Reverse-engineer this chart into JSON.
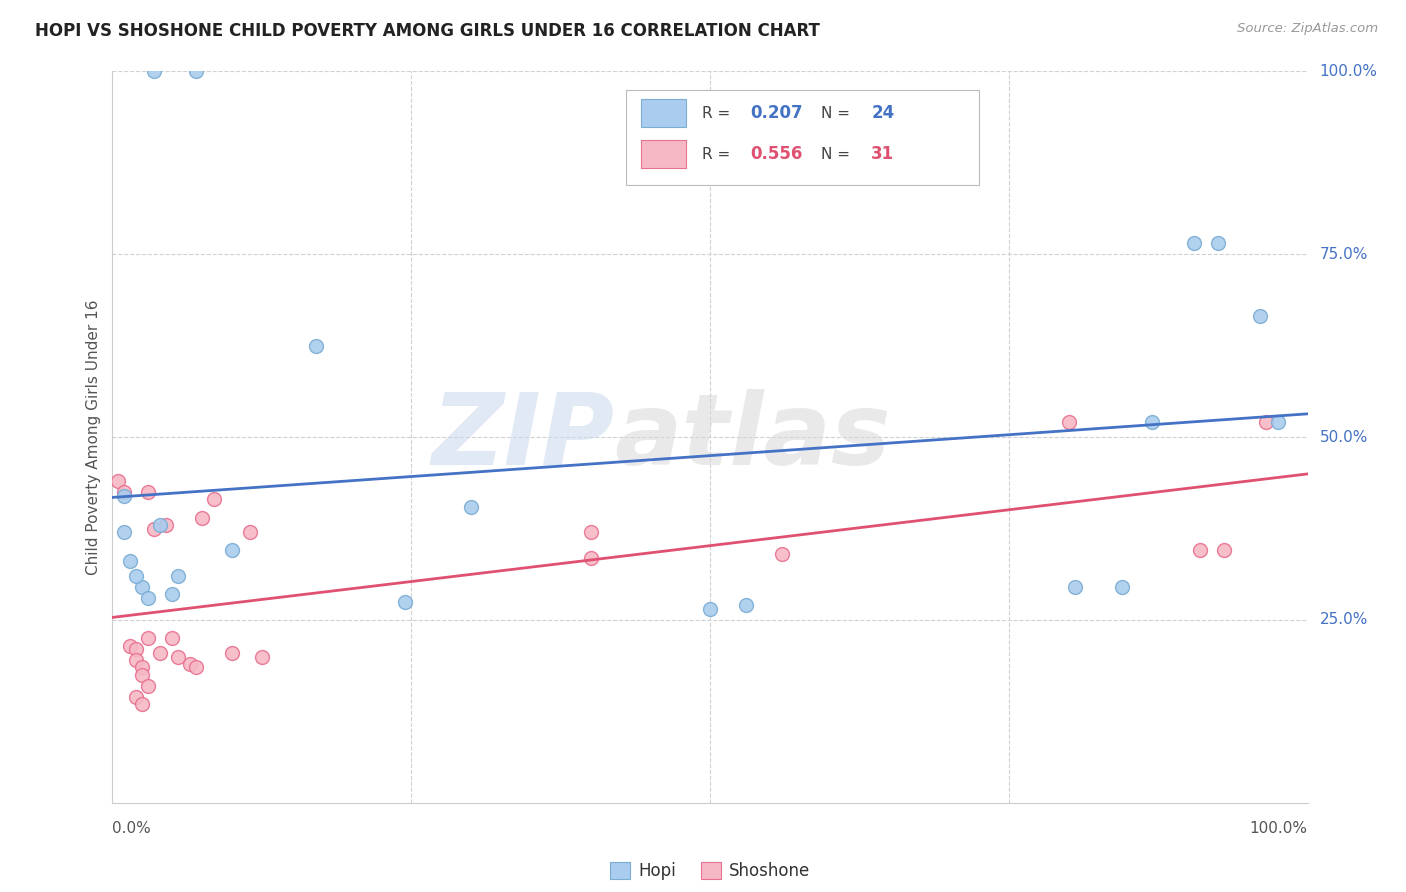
{
  "title": "HOPI VS SHOSHONE CHILD POVERTY AMONG GIRLS UNDER 16 CORRELATION CHART",
  "source": "Source: ZipAtlas.com",
  "ylabel": "Child Poverty Among Girls Under 16",
  "watermark_zip": "ZIP",
  "watermark_atlas": "atlas",
  "hopi": {
    "R": 0.207,
    "N": 24,
    "dot_color": "#aaccee",
    "edge_color": "#7aadd4",
    "line_color": "#4472c4",
    "label": "Hopi",
    "points": [
      [
        0.01,
        0.42
      ],
      [
        0.035,
        1.0
      ],
      [
        0.07,
        1.0
      ],
      [
        0.01,
        0.37
      ],
      [
        0.015,
        0.33
      ],
      [
        0.025,
        0.295
      ],
      [
        0.05,
        0.285
      ],
      [
        0.03,
        0.28
      ],
      [
        0.055,
        0.31
      ],
      [
        0.1,
        0.345
      ],
      [
        0.17,
        0.625
      ],
      [
        0.245,
        0.275
      ],
      [
        0.3,
        0.405
      ],
      [
        0.5,
        0.265
      ],
      [
        0.53,
        0.27
      ],
      [
        0.805,
        0.295
      ],
      [
        0.845,
        0.295
      ],
      [
        0.87,
        0.52
      ],
      [
        0.905,
        0.765
      ],
      [
        0.925,
        0.765
      ],
      [
        0.96,
        0.665
      ],
      [
        0.975,
        0.52
      ],
      [
        0.02,
        0.31
      ],
      [
        0.04,
        0.38
      ]
    ]
  },
  "shoshone": {
    "R": 0.556,
    "N": 31,
    "dot_color": "#f5b8c4",
    "edge_color": "#e87090",
    "line_color": "#e05070",
    "label": "Shoshone",
    "points": [
      [
        0.005,
        0.44
      ],
      [
        0.01,
        0.425
      ],
      [
        0.015,
        0.215
      ],
      [
        0.02,
        0.21
      ],
      [
        0.02,
        0.195
      ],
      [
        0.025,
        0.185
      ],
      [
        0.025,
        0.175
      ],
      [
        0.03,
        0.16
      ],
      [
        0.02,
        0.145
      ],
      [
        0.025,
        0.135
      ],
      [
        0.03,
        0.425
      ],
      [
        0.035,
        0.375
      ],
      [
        0.03,
        0.225
      ],
      [
        0.04,
        0.205
      ],
      [
        0.045,
        0.38
      ],
      [
        0.05,
        0.225
      ],
      [
        0.055,
        0.2
      ],
      [
        0.065,
        0.19
      ],
      [
        0.07,
        0.185
      ],
      [
        0.075,
        0.39
      ],
      [
        0.085,
        0.415
      ],
      [
        0.1,
        0.205
      ],
      [
        0.115,
        0.37
      ],
      [
        0.125,
        0.2
      ],
      [
        0.4,
        0.37
      ],
      [
        0.4,
        0.335
      ],
      [
        0.56,
        0.34
      ],
      [
        0.8,
        0.52
      ],
      [
        0.91,
        0.345
      ],
      [
        0.93,
        0.345
      ],
      [
        0.965,
        0.52
      ]
    ]
  },
  "xlim": [
    0.0,
    1.0
  ],
  "ylim": [
    0.0,
    1.0
  ],
  "yticks": [
    0.25,
    0.5,
    0.75,
    1.0
  ],
  "xtick_positions": [
    0.0,
    0.25,
    0.5,
    0.75,
    1.0
  ],
  "bg_color": "#ffffff",
  "grid_color": "#d0d0d0",
  "title_color": "#222222",
  "right_tick_color": "#4472c4",
  "marker_size": 100
}
